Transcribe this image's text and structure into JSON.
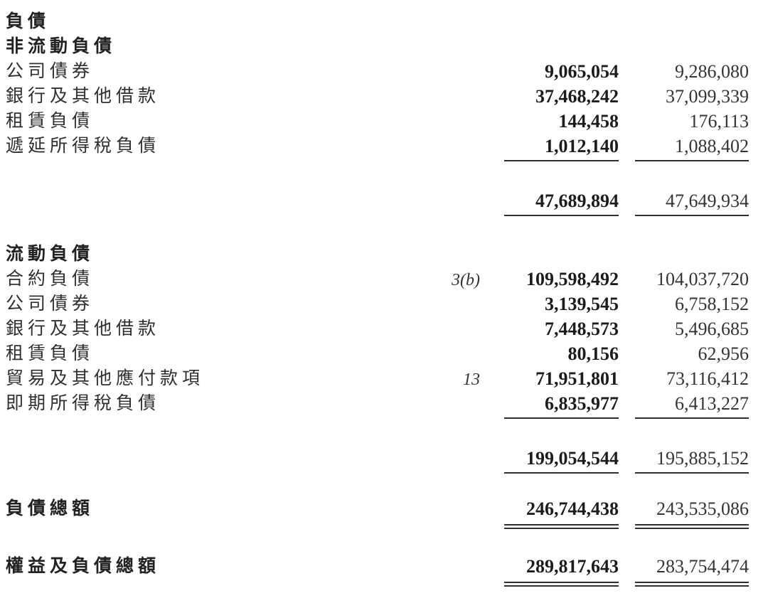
{
  "document": {
    "type": "financial-statement-liabilities-section",
    "text_color": "#2f2f2f",
    "rule_color": "#2e2e2e",
    "background": "#ffffff"
  },
  "rows": [
    {
      "label": "負債"
    },
    {
      "label": "非流動負債"
    },
    {
      "label": "公司債券",
      "v1": "9,065,054",
      "v2": "9,286,080"
    },
    {
      "label": "銀行及其他借款",
      "v1": "37,468,242",
      "v2": "37,099,339"
    },
    {
      "label": "租賃負債",
      "v1": "144,458",
      "v2": "176,113"
    },
    {
      "label": "遞延所得稅負債",
      "v1": "1,012,140",
      "v2": "1,088,402"
    },
    {
      "label": "",
      "v1": "47,689,894",
      "v2": "47,649,934"
    },
    {
      "label": "流動負債"
    },
    {
      "label": "合約負債",
      "note": "3(b)",
      "v1": "109,598,492",
      "v2": "104,037,720"
    },
    {
      "label": "公司債券",
      "v1": "3,139,545",
      "v2": "6,758,152"
    },
    {
      "label": "銀行及其他借款",
      "v1": "7,448,573",
      "v2": "5,496,685"
    },
    {
      "label": "租賃負債",
      "v1": "80,156",
      "v2": "62,956"
    },
    {
      "label": "貿易及其他應付款項",
      "note": "13",
      "v1": "71,951,801",
      "v2": "73,116,412"
    },
    {
      "label": "即期所得稅負債",
      "v1": "6,835,977",
      "v2": "6,413,227"
    },
    {
      "label": "",
      "v1": "199,054,544",
      "v2": "195,885,152"
    },
    {
      "label": "負債總額",
      "v1": "246,744,438",
      "v2": "243,535,086"
    },
    {
      "label": "權益及負債總額",
      "v1": "289,817,643",
      "v2": "283,754,474"
    }
  ]
}
